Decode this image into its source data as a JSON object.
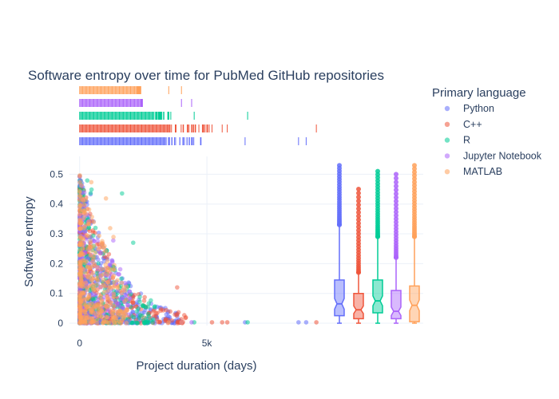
{
  "chart_data": {
    "type": "scatter",
    "title": "Software entropy over time for PubMed GitHub repositories",
    "xlabel": "Project duration (days)",
    "ylabel": "Software entropy",
    "xlim": [
      -400,
      13500
    ],
    "ylim": [
      -0.008,
      0.56
    ],
    "x_ticks": [
      {
        "value": 0,
        "label": "0"
      },
      {
        "value": 5000,
        "label": "5k"
      }
    ],
    "y_ticks": [
      {
        "value": 0,
        "label": "0"
      },
      {
        "value": 0.1,
        "label": "0.1"
      },
      {
        "value": 0.2,
        "label": "0.2"
      },
      {
        "value": 0.3,
        "label": "0.3"
      },
      {
        "value": 0.4,
        "label": "0.4"
      },
      {
        "value": 0.5,
        "label": "0.5"
      }
    ],
    "grid": true,
    "legend": {
      "title": "Primary language",
      "position": "right"
    },
    "series": [
      {
        "name": "Python",
        "color": "#636efa",
        "box": {
          "min": 0.0,
          "q1": 0.025,
          "median": 0.065,
          "q3": 0.145,
          "upper_fence": 0.33,
          "max": 0.53
        },
        "extreme_x": [
          6500,
          8600,
          8900
        ],
        "max_x": 8800
      },
      {
        "name": "C++",
        "color": "#ef553b",
        "box": {
          "min": 0.0,
          "q1": 0.015,
          "median": 0.045,
          "q3": 0.1,
          "upper_fence": 0.17,
          "max": 0.45
        },
        "extreme_x": [
          5200,
          5600,
          5800,
          9300
        ],
        "max_x": 9300
      },
      {
        "name": "R",
        "color": "#00cc96",
        "box": {
          "min": 0.0,
          "q1": 0.035,
          "median": 0.075,
          "q3": 0.145,
          "upper_fence": 0.29,
          "max": 0.51
        },
        "extreme_x": [
          4500,
          6600
        ],
        "max_x": 6600
      },
      {
        "name": "Jupyter Notebook",
        "color": "#ab63fa",
        "box": {
          "min": 0.0,
          "q1": 0.015,
          "median": 0.04,
          "q3": 0.11,
          "upper_fence": 0.22,
          "max": 0.5
        },
        "extreme_x": [
          4000,
          4400
        ],
        "max_x": 4400
      },
      {
        "name": "MATLAB",
        "color": "#ffa15a",
        "box": {
          "min": 0.0,
          "q1": 0.005,
          "median": 0.06,
          "q3": 0.125,
          "upper_fence": 0.29,
          "max": 0.53
        },
        "extreme_x": [
          3500,
          4000
        ],
        "max_x": 4100
      }
    ]
  }
}
